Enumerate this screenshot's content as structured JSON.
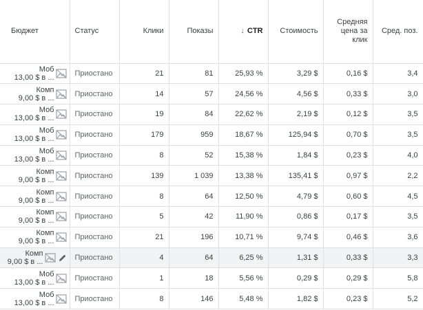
{
  "headers": {
    "budget": "Бюджет",
    "status": "Статус",
    "clicks": "Клики",
    "impressions": "Показы",
    "ctr": "CTR",
    "ctr_sort_icon": "arrow-down-icon",
    "cost": "Стоимость",
    "avg_cpc_line1": "Средняя",
    "avg_cpc_line2": "цена за",
    "avg_cpc_line3": "клик",
    "avg_pos": "Сред. поз."
  },
  "rows": [
    {
      "budget_name": "Моб",
      "budget_amount": "13,00 $ в ...",
      "status": "Приостано",
      "clicks": "21",
      "impressions": "81",
      "ctr": "25,93 %",
      "cost": "3,29 $",
      "avg_cpc": "0,16 $",
      "avg_pos": "3,4"
    },
    {
      "budget_name": "Комп",
      "budget_amount": "9,00 $ в ...",
      "status": "Приостано",
      "clicks": "14",
      "impressions": "57",
      "ctr": "24,56 %",
      "cost": "4,56 $",
      "avg_cpc": "0,33 $",
      "avg_pos": "3,0"
    },
    {
      "budget_name": "Моб",
      "budget_amount": "13,00 $ в ...",
      "status": "Приостано",
      "clicks": "19",
      "impressions": "84",
      "ctr": "22,62 %",
      "cost": "2,19 $",
      "avg_cpc": "0,12 $",
      "avg_pos": "3,5"
    },
    {
      "budget_name": "Моб",
      "budget_amount": "13,00 $ в ...",
      "status": "Приостано",
      "clicks": "179",
      "impressions": "959",
      "ctr": "18,67 %",
      "cost": "125,94 $",
      "avg_cpc": "0,70 $",
      "avg_pos": "3,5"
    },
    {
      "budget_name": "Моб",
      "budget_amount": "13,00 $ в ...",
      "status": "Приостано",
      "clicks": "8",
      "impressions": "52",
      "ctr": "15,38 %",
      "cost": "1,84 $",
      "avg_cpc": "0,23 $",
      "avg_pos": "4,0"
    },
    {
      "budget_name": "Комп",
      "budget_amount": "9,00 $ в ...",
      "status": "Приостано",
      "clicks": "139",
      "impressions": "1 039",
      "ctr": "13,38 %",
      "cost": "135,41 $",
      "avg_cpc": "0,97 $",
      "avg_pos": "2,2"
    },
    {
      "budget_name": "Комп",
      "budget_amount": "9,00 $ в ...",
      "status": "Приостано",
      "clicks": "8",
      "impressions": "64",
      "ctr": "12,50 %",
      "cost": "4,79 $",
      "avg_cpc": "0,60 $",
      "avg_pos": "4,5"
    },
    {
      "budget_name": "Комп",
      "budget_amount": "9,00 $ в ...",
      "status": "Приостано",
      "clicks": "5",
      "impressions": "42",
      "ctr": "11,90 %",
      "cost": "0,86 $",
      "avg_cpc": "0,17 $",
      "avg_pos": "3,5"
    },
    {
      "budget_name": "Комп",
      "budget_amount": "9,00 $ в ...",
      "status": "Приостано",
      "clicks": "21",
      "impressions": "196",
      "ctr": "10,71 %",
      "cost": "9,74 $",
      "avg_cpc": "0,46 $",
      "avg_pos": "3,6"
    },
    {
      "budget_name": "Комп",
      "budget_amount": "9,00 $ в ...",
      "status": "Приостано",
      "clicks": "4",
      "impressions": "64",
      "ctr": "6,25 %",
      "cost": "1,31 $",
      "avg_cpc": "0,33 $",
      "avg_pos": "3,3",
      "highlighted": true
    },
    {
      "budget_name": "Моб",
      "budget_amount": "13,00 $ в ...",
      "status": "Приостано",
      "clicks": "1",
      "impressions": "18",
      "ctr": "5,56 %",
      "cost": "0,29 $",
      "avg_cpc": "0,29 $",
      "avg_pos": "5,8"
    },
    {
      "budget_name": "Моб",
      "budget_amount": "13,00 $ в ...",
      "status": "Приостано",
      "clicks": "8",
      "impressions": "146",
      "ctr": "5,48 %",
      "cost": "1,82 $",
      "avg_cpc": "0,23 $",
      "avg_pos": "5,2"
    }
  ],
  "icons": {
    "budget_icon": "image-placeholder-icon",
    "edit_icon": "pencil-icon"
  },
  "colors": {
    "grid": "#e0e0e0",
    "highlight_row": "#f1f3f4",
    "text": "#3c4043"
  }
}
